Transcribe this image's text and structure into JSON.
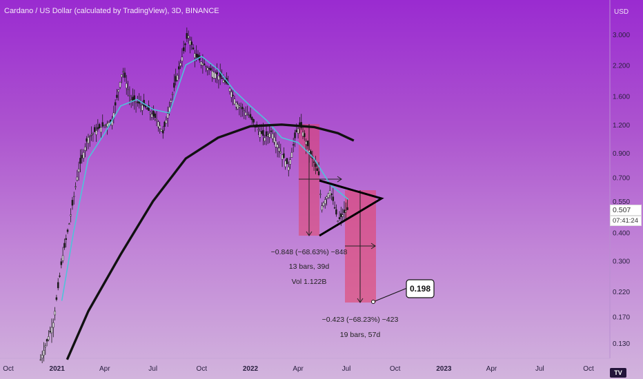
{
  "header": {
    "title": "Cardano / US Dollar (calculated by TradingView), 3D, BINANCE"
  },
  "colors": {
    "bg_top": "#9a2bd0",
    "bg_bottom": "#d2b4dd",
    "candle": "#1a1a1a",
    "ma_fast": "#4fc3d9",
    "ma_slow": "#111111",
    "measure_box": "#e2436a"
  },
  "price_axis": {
    "currency": "USD",
    "ticks": [
      "3.000",
      "2.200",
      "1.600",
      "1.200",
      "0.900",
      "0.700",
      "0.550",
      "0.400",
      "0.300",
      "0.220",
      "0.170",
      "0.130"
    ],
    "current_price": "0.507",
    "countdown": "07:41:24"
  },
  "time_axis": {
    "ticks": [
      "Oct",
      "2021",
      "Apr",
      "Jul",
      "Oct",
      "2022",
      "Apr",
      "Jul",
      "Oct",
      "2023",
      "Apr",
      "Jul",
      "Oct"
    ]
  },
  "measurements": [
    {
      "change": "−0.848 (−68.63%) −848",
      "bars": "13 bars, 39d",
      "volume": "Vol 1.122B"
    },
    {
      "change": "−0.423 (−68.23%) −423",
      "bars": "19 bars, 57d"
    }
  ],
  "target_label": "0.198",
  "brand_icon": "tradingview-logo-icon",
  "chart_data": {
    "type": "candlestick",
    "title": "Cardano / US Dollar (calculated by TradingView), 3D, BINANCE",
    "y_scale": "log",
    "ylim": [
      0.11,
      3.6
    ],
    "x_range": [
      "2020-10-01",
      "2023-11-15"
    ],
    "price_path": [
      [
        "2020-12-01",
        0.11
      ],
      [
        "2020-12-25",
        0.16
      ],
      [
        "2021-01-10",
        0.3
      ],
      [
        "2021-01-25",
        0.45
      ],
      [
        "2021-02-10",
        0.75
      ],
      [
        "2021-02-28",
        1.05
      ],
      [
        "2021-03-20",
        1.15
      ],
      [
        "2021-04-15",
        1.25
      ],
      [
        "2021-05-05",
        2.1
      ],
      [
        "2021-05-20",
        1.55
      ],
      [
        "2021-06-15",
        1.45
      ],
      [
        "2021-07-10",
        1.25
      ],
      [
        "2021-07-20",
        1.1
      ],
      [
        "2021-08-10",
        1.75
      ],
      [
        "2021-08-31",
        2.7
      ],
      [
        "2021-09-05",
        3.0
      ],
      [
        "2021-09-20",
        2.4
      ],
      [
        "2021-10-10",
        2.15
      ],
      [
        "2021-10-30",
        2.0
      ],
      [
        "2021-11-20",
        1.8
      ],
      [
        "2021-12-05",
        1.5
      ],
      [
        "2021-12-31",
        1.3
      ],
      [
        "2022-01-15",
        1.15
      ],
      [
        "2022-01-28",
        1.05
      ],
      [
        "2022-02-10",
        1.12
      ],
      [
        "2022-02-28",
        0.9
      ],
      [
        "2022-03-14",
        0.78
      ],
      [
        "2022-03-28",
        1.1
      ],
      [
        "2022-04-05",
        1.2
      ],
      [
        "2022-04-20",
        0.95
      ],
      [
        "2022-05-10",
        0.72
      ],
      [
        "2022-05-15",
        0.52
      ],
      [
        "2022-06-01",
        0.62
      ],
      [
        "2022-06-15",
        0.45
      ],
      [
        "2022-06-30",
        0.5
      ],
      [
        "2022-07-05",
        0.507
      ]
    ],
    "ma_fast_path": [
      [
        "2021-01-10",
        0.2
      ],
      [
        "2021-02-01",
        0.4
      ],
      [
        "2021-03-01",
        0.85
      ],
      [
        "2021-04-01",
        1.1
      ],
      [
        "2021-05-01",
        1.45
      ],
      [
        "2021-06-01",
        1.55
      ],
      [
        "2021-07-01",
        1.4
      ],
      [
        "2021-08-01",
        1.35
      ],
      [
        "2021-09-01",
        2.2
      ],
      [
        "2021-10-01",
        2.4
      ],
      [
        "2021-11-01",
        2.1
      ],
      [
        "2021-12-01",
        1.7
      ],
      [
        "2022-01-01",
        1.45
      ],
      [
        "2022-02-01",
        1.25
      ],
      [
        "2022-03-01",
        1.05
      ],
      [
        "2022-04-01",
        1.0
      ],
      [
        "2022-05-01",
        0.85
      ],
      [
        "2022-06-01",
        0.65
      ],
      [
        "2022-07-05",
        0.56
      ]
    ],
    "ma_slow_path": [
      [
        "2021-01-20",
        0.11
      ],
      [
        "2021-03-01",
        0.18
      ],
      [
        "2021-05-01",
        0.32
      ],
      [
        "2021-07-01",
        0.55
      ],
      [
        "2021-09-01",
        0.85
      ],
      [
        "2021-11-01",
        1.05
      ],
      [
        "2022-01-01",
        1.18
      ],
      [
        "2022-03-01",
        1.2
      ],
      [
        "2022-05-01",
        1.17
      ],
      [
        "2022-06-15",
        1.1
      ],
      [
        "2022-07-15",
        1.02
      ]
    ],
    "annotations": [
      {
        "type": "triangle",
        "points": [
          [
            "2022-06-01",
            0.68
          ],
          [
            "2022-08-20",
            0.57
          ],
          [
            "2022-06-01",
            0.39
          ]
        ]
      },
      {
        "type": "price_range",
        "from": [
          "2022-04-01",
          1.23
        ],
        "to": [
          "2022-05-15",
          0.39
        ],
        "label": "−0.848 (−68.63%) −848"
      },
      {
        "type": "price_range",
        "from": [
          "2022-07-01",
          0.62
        ],
        "to": [
          "2022-08-28",
          0.198
        ],
        "label": "−0.423 (−68.23%) −423"
      },
      {
        "type": "target",
        "value": 0.198,
        "label": "0.198"
      }
    ]
  }
}
